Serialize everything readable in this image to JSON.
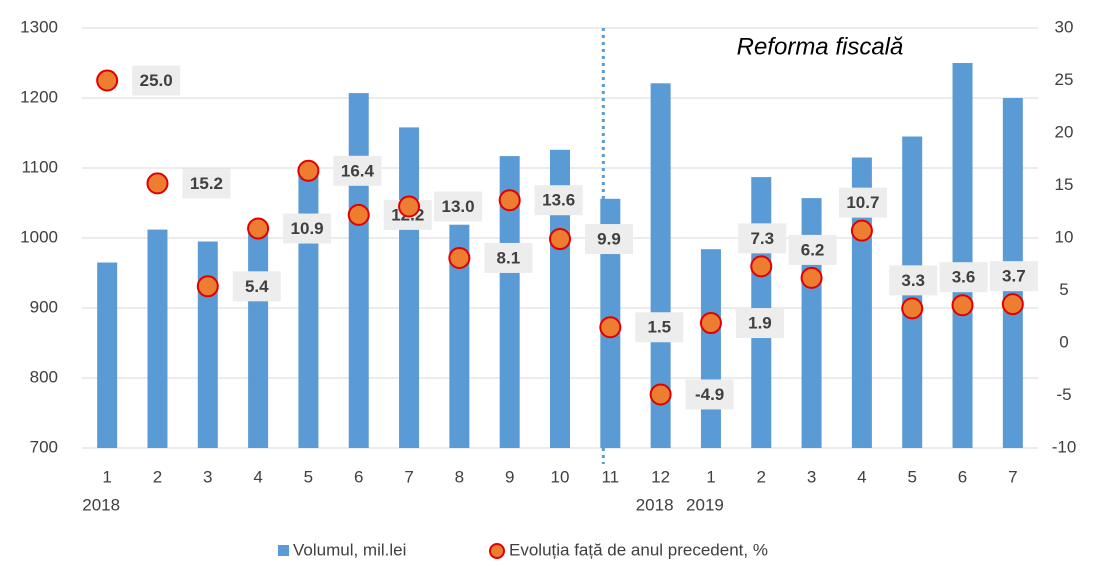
{
  "chart_data": {
    "type": "bar_scatter",
    "annotation": "Reforma fiscală",
    "categories": [
      "1",
      "2",
      "3",
      "4",
      "5",
      "6",
      "7",
      "8",
      "9",
      "10",
      "11",
      "12",
      "1",
      "2",
      "3",
      "4",
      "5",
      "6",
      "7"
    ],
    "year_labels": [
      "2018",
      null,
      null,
      null,
      null,
      null,
      null,
      null,
      null,
      null,
      null,
      "2018",
      "2019",
      null,
      null,
      null,
      null,
      null,
      null
    ],
    "series": [
      {
        "name": "Volumul, mil.lei",
        "type": "bar",
        "color": "#5b9bd5",
        "values": [
          965,
          1012,
          995,
          1013,
          1095,
          1207,
          1158,
          1019,
          1117,
          1126,
          1056,
          1221,
          984,
          1087,
          1057,
          1115,
          1145,
          1250,
          1200
        ]
      },
      {
        "name": "Evoluția față de anul precedent, %",
        "type": "scatter",
        "axis": "y2",
        "color": "#ed7d31",
        "edge": "#e00000",
        "values": [
          25.0,
          15.2,
          5.4,
          10.9,
          16.4,
          12.2,
          13.0,
          8.1,
          13.6,
          9.9,
          1.5,
          -4.9,
          1.9,
          7.3,
          6.2,
          10.7,
          3.3,
          3.6,
          3.7
        ],
        "value_labels": [
          "25.0",
          "15.2",
          "5.4",
          "10.9",
          "16.4",
          "12.2",
          "13.0",
          "8.1",
          "13.6",
          "9.9",
          "1.5",
          "-4.9",
          "1.9",
          "7.3",
          "6.2",
          "10.7",
          "3.3",
          "3.6",
          "3.7"
        ]
      }
    ],
    "ylim": [
      700,
      1300
    ],
    "yticks": [
      700,
      800,
      900,
      1000,
      1100,
      1200,
      1300
    ],
    "y2lim": [
      -10,
      30
    ],
    "y2ticks": [
      -10,
      -5,
      0,
      5,
      10,
      15,
      20,
      25,
      30
    ],
    "grid": true,
    "legend": "bottom"
  }
}
